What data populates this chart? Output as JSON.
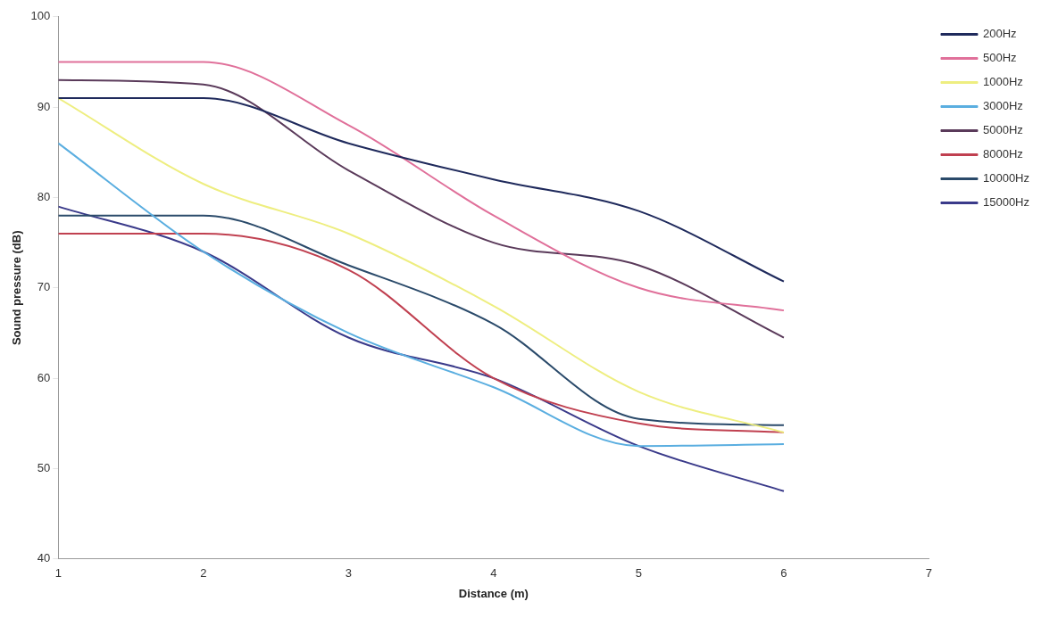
{
  "chart_data": {
    "type": "line",
    "xlabel": "Distance (m)",
    "ylabel": "Sound pressure (dB)",
    "x": [
      1,
      2,
      3,
      4,
      5,
      6
    ],
    "xlim": [
      1,
      7
    ],
    "xticks": [
      1,
      2,
      3,
      4,
      5,
      6,
      7
    ],
    "ylim": [
      40,
      100
    ],
    "yticks": [
      40,
      50,
      60,
      70,
      80,
      90,
      100
    ],
    "grid": false,
    "legend": "top right",
    "marker": "none",
    "line_style": "solid",
    "series": [
      {
        "name": "200Hz",
        "color": "#1f2a5c",
        "values": [
          91,
          91,
          86,
          82,
          78.5,
          70.7
        ]
      },
      {
        "name": "500Hz",
        "color": "#e0709a",
        "values": [
          95,
          95,
          88,
          78,
          70,
          67.5
        ]
      },
      {
        "name": "1000Hz",
        "color": "#eeee80",
        "values": [
          91,
          81.5,
          76,
          68,
          58.5,
          54
        ]
      },
      {
        "name": "3000Hz",
        "color": "#5aaee0",
        "values": [
          86,
          74,
          65,
          59,
          52.5,
          52.7
        ]
      },
      {
        "name": "5000Hz",
        "color": "#5a3a5a",
        "values": [
          93,
          92.5,
          83,
          75,
          72.5,
          64.5
        ]
      },
      {
        "name": "8000Hz",
        "color": "#c04050",
        "values": [
          76,
          76,
          72,
          60,
          55,
          54
        ]
      },
      {
        "name": "10000Hz",
        "color": "#2a4a6a",
        "values": [
          78,
          78,
          72.5,
          66,
          55.5,
          54.8
        ]
      },
      {
        "name": "15000Hz",
        "color": "#3a3a8a",
        "values": [
          79,
          74,
          64.5,
          60,
          52.5,
          47.5
        ]
      }
    ]
  }
}
